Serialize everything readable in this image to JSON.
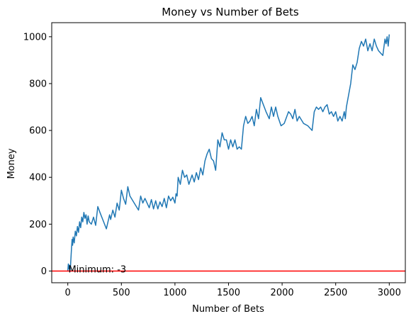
{
  "chart_data": {
    "type": "line",
    "title": "Money vs Number of Bets",
    "xlabel": "Number of Bets",
    "ylabel": "Money",
    "xlim": [
      -150,
      3150
    ],
    "ylim": [
      -50,
      1060
    ],
    "xticks": [
      0,
      500,
      1000,
      1500,
      2000,
      2500,
      3000
    ],
    "yticks": [
      0,
      200,
      400,
      600,
      800,
      1000
    ],
    "grid": false,
    "series": [
      {
        "color": "#1f77b4",
        "x": [
          0,
          5,
          10,
          15,
          20,
          25,
          30,
          35,
          40,
          45,
          50,
          60,
          70,
          80,
          90,
          100,
          110,
          120,
          130,
          140,
          150,
          160,
          170,
          180,
          190,
          200,
          220,
          240,
          260,
          280,
          300,
          330,
          360,
          390,
          400,
          420,
          440,
          460,
          480,
          500,
          520,
          540,
          560,
          580,
          620,
          660,
          680,
          700,
          720,
          760,
          780,
          800,
          820,
          840,
          860,
          880,
          900,
          920,
          940,
          960,
          980,
          1000,
          1010,
          1020,
          1030,
          1050,
          1070,
          1090,
          1110,
          1130,
          1160,
          1180,
          1200,
          1220,
          1240,
          1260,
          1280,
          1300,
          1320,
          1340,
          1360,
          1380,
          1400,
          1420,
          1440,
          1460,
          1480,
          1500,
          1520,
          1540,
          1560,
          1580,
          1600,
          1620,
          1640,
          1660,
          1680,
          1700,
          1720,
          1740,
          1760,
          1780,
          1800,
          1850,
          1880,
          1900,
          1920,
          1940,
          1960,
          1990,
          2020,
          2060,
          2080,
          2100,
          2120,
          2140,
          2160,
          2200,
          2240,
          2280,
          2300,
          2320,
          2340,
          2360,
          2380,
          2400,
          2420,
          2440,
          2460,
          2480,
          2500,
          2520,
          2540,
          2560,
          2580,
          2590,
          2600,
          2620,
          2640,
          2660,
          2680,
          2700,
          2720,
          2740,
          2760,
          2780,
          2800,
          2820,
          2840,
          2860,
          2880,
          2900,
          2920,
          2940,
          2960,
          2970,
          2980,
          2990,
          3000
        ],
        "y": [
          0,
          30,
          10,
          25,
          -3,
          20,
          60,
          100,
          135,
          110,
          145,
          120,
          170,
          150,
          190,
          165,
          210,
          185,
          230,
          210,
          250,
          225,
          240,
          200,
          235,
          210,
          200,
          230,
          195,
          275,
          250,
          215,
          180,
          240,
          220,
          260,
          230,
          290,
          260,
          345,
          310,
          285,
          360,
          320,
          290,
          260,
          320,
          290,
          310,
          270,
          305,
          265,
          300,
          265,
          295,
          275,
          310,
          270,
          320,
          300,
          315,
          290,
          330,
          320,
          400,
          370,
          430,
          400,
          410,
          370,
          410,
          380,
          420,
          390,
          440,
          410,
          470,
          500,
          520,
          480,
          470,
          430,
          560,
          530,
          590,
          560,
          560,
          520,
          560,
          530,
          560,
          520,
          530,
          520,
          620,
          660,
          630,
          640,
          660,
          620,
          690,
          650,
          740,
          680,
          650,
          700,
          660,
          700,
          660,
          620,
          630,
          680,
          670,
          650,
          690,
          640,
          660,
          630,
          620,
          600,
          680,
          700,
          690,
          700,
          680,
          700,
          710,
          670,
          680,
          660,
          680,
          640,
          660,
          640,
          680,
          650,
          700,
          750,
          800,
          880,
          860,
          890,
          950,
          980,
          960,
          990,
          940,
          970,
          940,
          990,
          960,
          940,
          930,
          920,
          990,
          970,
          1000,
          960,
          1010
        ]
      }
    ],
    "hline": {
      "y": 0,
      "color": "#ff0000"
    },
    "annotation": {
      "text": "Minimum: -3",
      "x": 5,
      "y": -3
    }
  }
}
